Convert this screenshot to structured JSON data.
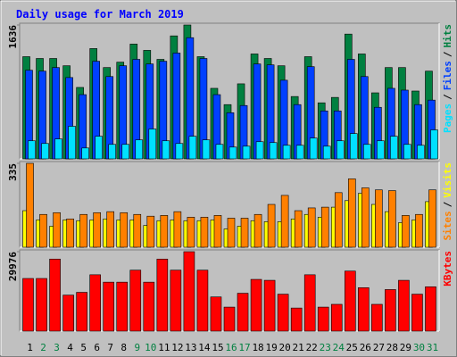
{
  "chart_data": [
    {
      "type": "bar",
      "title": "Daily usage for March 2019",
      "legend_separator": "/",
      "ylim": [
        0,
        1636
      ],
      "yticks": [
        1636
      ],
      "series": [
        {
          "name": "Hits",
          "color": "#008040",
          "values": [
            1249,
            1227,
            1227,
            1138,
            873,
            1348,
            1116,
            1182,
            1403,
            1326,
            1216,
            1503,
            1636,
            1249,
            862,
            663,
            917,
            1282,
            1227,
            1138,
            762,
            1249,
            685,
            751,
            1525,
            1282,
            807,
            1116,
            1116,
            829,
            1072
          ]
        },
        {
          "name": "Files",
          "color": "#0040ff",
          "values": [
            1083,
            1072,
            1116,
            994,
            785,
            1193,
            1006,
            1138,
            1216,
            1160,
            1193,
            1293,
            1481,
            1227,
            785,
            564,
            652,
            1160,
            1149,
            961,
            663,
            1127,
            586,
            586,
            1216,
            1006,
            630,
            862,
            840,
            663,
            718
          ]
        },
        {
          "name": "Pages",
          "color": "#00e0ff",
          "values": [
            221,
            188,
            243,
            398,
            133,
            276,
            177,
            177,
            232,
            365,
            221,
            188,
            276,
            232,
            177,
            144,
            155,
            210,
            199,
            166,
            166,
            254,
            155,
            221,
            309,
            177,
            221,
            276,
            177,
            166,
            354
          ]
        }
      ]
    },
    {
      "type": "bar",
      "legend_separator": "/",
      "ylim": [
        0,
        335
      ],
      "yticks": [
        335
      ],
      "series": [
        {
          "name": "Visits",
          "color": "#ffff00",
          "values": [
            146,
            109,
            84,
            109,
            106,
            109,
            113,
            109,
            109,
            87,
            106,
            109,
            106,
            106,
            109,
            73,
            84,
            106,
            102,
            102,
            113,
            131,
            120,
            160,
            186,
            215,
            171,
            142,
            98,
            109,
            182
          ]
        },
        {
          "name": "Sites",
          "color": "#ff8000",
          "values": [
            335,
            131,
            138,
            113,
            131,
            138,
            142,
            138,
            131,
            124,
            127,
            142,
            120,
            120,
            127,
            116,
            116,
            131,
            171,
            207,
            146,
            157,
            160,
            218,
            273,
            237,
            229,
            226,
            127,
            131,
            229
          ]
        }
      ]
    },
    {
      "type": "bar",
      "ylim": [
        0,
        29976
      ],
      "yticks": [
        29976
      ],
      "series": [
        {
          "name": "KBytes",
          "color": "#ff0000",
          "values": [
            19870,
            19870,
            27191,
            13595,
            14641,
            21265,
            18476,
            18476,
            23008,
            18476,
            27191,
            23008,
            29976,
            23008,
            12898,
            9064,
            14293,
            19522,
            19173,
            13944,
            8715,
            21265,
            9064,
            10109,
            22659,
            16384,
            10109,
            15687,
            19173,
            13944,
            16733
          ]
        }
      ],
      "categories": [
        1,
        2,
        3,
        4,
        5,
        6,
        7,
        8,
        9,
        10,
        11,
        12,
        13,
        14,
        15,
        16,
        17,
        18,
        19,
        20,
        21,
        22,
        23,
        24,
        25,
        26,
        27,
        28,
        29,
        30,
        31
      ],
      "category_colors": [
        "#000000",
        "#008040",
        "#008040",
        "#000000",
        "#000000",
        "#000000",
        "#000000",
        "#000000",
        "#008040",
        "#008040",
        "#000000",
        "#000000",
        "#000000",
        "#000000",
        "#000000",
        "#008040",
        "#008040",
        "#000000",
        "#000000",
        "#000000",
        "#000000",
        "#000000",
        "#008040",
        "#008040",
        "#000000",
        "#000000",
        "#000000",
        "#000000",
        "#000000",
        "#008040",
        "#008040"
      ]
    }
  ]
}
